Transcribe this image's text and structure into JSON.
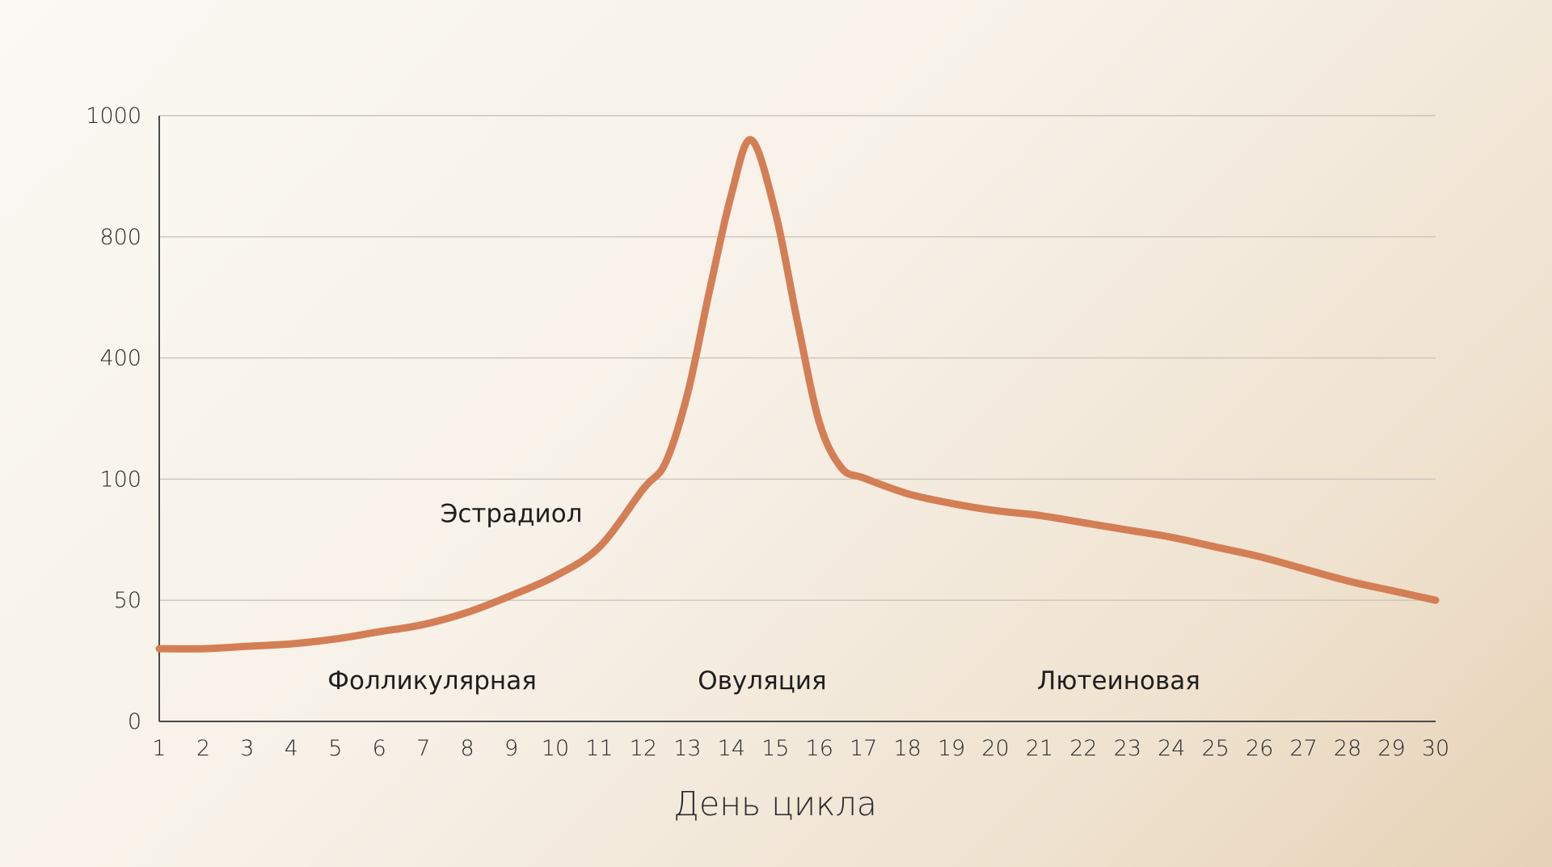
{
  "chart_data": {
    "type": "line",
    "title": "",
    "xlabel": "День цикла",
    "ylabel": "",
    "y_ticks": [
      "0",
      "50",
      "100",
      "400",
      "800",
      "1000"
    ],
    "y_scale": "non-uniform (ticks equally spaced)",
    "x_ticks": [
      "1",
      "2",
      "3",
      "4",
      "5",
      "6",
      "7",
      "8",
      "9",
      "10",
      "11",
      "12",
      "13",
      "14",
      "15",
      "16",
      "17",
      "18",
      "19",
      "20",
      "21",
      "22",
      "23",
      "24",
      "25",
      "26",
      "27",
      "28",
      "29",
      "30"
    ],
    "xlim": [
      1,
      30
    ],
    "grid": "horizontal",
    "series": [
      {
        "color": "#d47e55",
        "points": [
          {
            "x": 1,
            "y": 30
          },
          {
            "x": 2,
            "y": 30
          },
          {
            "x": 3,
            "y": 31
          },
          {
            "x": 4,
            "y": 32
          },
          {
            "x": 5,
            "y": 34
          },
          {
            "x": 6,
            "y": 37
          },
          {
            "x": 7,
            "y": 40
          },
          {
            "x": 8,
            "y": 45
          },
          {
            "x": 9,
            "y": 52
          },
          {
            "x": 10,
            "y": 60
          },
          {
            "x": 11,
            "y": 72
          },
          {
            "x": 12,
            "y": 96
          },
          {
            "x": 12.5,
            "y": 140
          },
          {
            "x": 13,
            "y": 310
          },
          {
            "x": 13.5,
            "y": 620
          },
          {
            "x": 14,
            "y": 870
          },
          {
            "x": 14.45,
            "y": 960
          },
          {
            "x": 15,
            "y": 840
          },
          {
            "x": 15.5,
            "y": 520
          },
          {
            "x": 16,
            "y": 240
          },
          {
            "x": 16.5,
            "y": 128
          },
          {
            "x": 17,
            "y": 103
          },
          {
            "x": 18,
            "y": 94
          },
          {
            "x": 19,
            "y": 90
          },
          {
            "x": 20,
            "y": 87
          },
          {
            "x": 21,
            "y": 85
          },
          {
            "x": 22,
            "y": 82
          },
          {
            "x": 23,
            "y": 79
          },
          {
            "x": 24,
            "y": 76
          },
          {
            "x": 25,
            "y": 72
          },
          {
            "x": 26,
            "y": 68
          },
          {
            "x": 27,
            "y": 63
          },
          {
            "x": 28,
            "y": 58
          },
          {
            "x": 29,
            "y": 54
          },
          {
            "x": 30,
            "y": 50
          }
        ]
      }
    ],
    "annotations": [
      {
        "text": "Эстрадиол",
        "x": 9,
        "y": 86
      },
      {
        "text": "Фолликулярная",
        "x": 7.2,
        "y": 17
      },
      {
        "text": "Овуляция",
        "x": 14.7,
        "y": 17
      },
      {
        "text": "Лютеиновая",
        "x": 22.8,
        "y": 17
      }
    ]
  }
}
